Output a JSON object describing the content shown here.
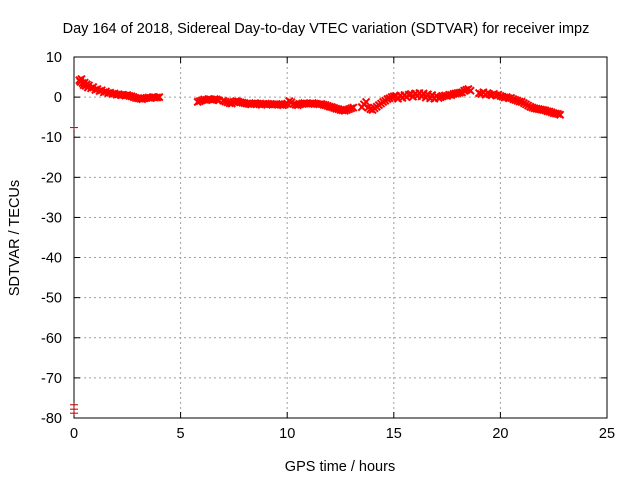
{
  "chart_data": {
    "type": "scatter",
    "title": "Day 164 of 2018, Sidereal Day-to-day VTEC variation (SDTVAR) for receiver impz",
    "xlabel": "GPS time / hours",
    "ylabel": "SDTVAR / TECUs",
    "xlim": [
      0,
      25
    ],
    "ylim": [
      -80,
      10
    ],
    "xticks": [
      0,
      5,
      10,
      15,
      20,
      25
    ],
    "yticks": [
      10,
      0,
      -10,
      -20,
      -30,
      -40,
      -50,
      -60,
      -70,
      -80
    ],
    "grid": true,
    "series": [
      {
        "name": "SDTVAR",
        "color": "#ff0000",
        "marker": "x",
        "points": [
          [
            0.25,
            4.2
          ],
          [
            0.3,
            3.8
          ],
          [
            0.35,
            4.5
          ],
          [
            0.4,
            3.5
          ],
          [
            0.45,
            3.0
          ],
          [
            0.5,
            3.6
          ],
          [
            0.55,
            2.8
          ],
          [
            0.6,
            3.2
          ],
          [
            0.65,
            2.4
          ],
          [
            0.7,
            2.9
          ],
          [
            0.8,
            2.2
          ],
          [
            0.9,
            2.5
          ],
          [
            1.0,
            1.8
          ],
          [
            1.1,
            2.0
          ],
          [
            1.2,
            1.5
          ],
          [
            1.3,
            1.7
          ],
          [
            1.4,
            1.2
          ],
          [
            1.5,
            1.4
          ],
          [
            1.6,
            1.0
          ],
          [
            1.7,
            1.1
          ],
          [
            1.8,
            0.8
          ],
          [
            1.9,
            0.9
          ],
          [
            2.0,
            0.6
          ],
          [
            2.1,
            0.7
          ],
          [
            2.2,
            0.5
          ],
          [
            2.3,
            0.6
          ],
          [
            2.4,
            0.4
          ],
          [
            2.5,
            0.5
          ],
          [
            2.6,
            0.3
          ],
          [
            2.7,
            0.2
          ],
          [
            2.8,
            0.0
          ],
          [
            2.9,
            -0.2
          ],
          [
            3.0,
            -0.3
          ],
          [
            3.1,
            -0.4
          ],
          [
            3.2,
            -0.5
          ],
          [
            3.3,
            -0.3
          ],
          [
            3.4,
            -0.2
          ],
          [
            3.5,
            -0.1
          ],
          [
            3.6,
            -0.2
          ],
          [
            3.7,
            0.0
          ],
          [
            3.8,
            -0.1
          ],
          [
            3.9,
            -0.1
          ],
          [
            4.0,
            0.0
          ],
          [
            5.8,
            -1.2
          ],
          [
            5.9,
            -1.0
          ],
          [
            6.0,
            -0.8
          ],
          [
            6.1,
            -0.6
          ],
          [
            6.2,
            -0.7
          ],
          [
            6.3,
            -0.5
          ],
          [
            6.4,
            -0.6
          ],
          [
            6.5,
            -0.7
          ],
          [
            6.6,
            -0.5
          ],
          [
            6.7,
            -0.6
          ],
          [
            6.8,
            -0.8
          ],
          [
            7.0,
            -0.9
          ],
          [
            7.1,
            -1.1
          ],
          [
            7.2,
            -1.3
          ],
          [
            7.3,
            -1.5
          ],
          [
            7.4,
            -1.6
          ],
          [
            7.5,
            -1.2
          ],
          [
            7.6,
            -1.0
          ],
          [
            7.7,
            -1.1
          ],
          [
            7.8,
            -1.3
          ],
          [
            7.9,
            -1.4
          ],
          [
            8.0,
            -1.5
          ],
          [
            8.1,
            -1.6
          ],
          [
            8.2,
            -1.7
          ],
          [
            8.3,
            -1.8
          ],
          [
            8.4,
            -1.6
          ],
          [
            8.5,
            -1.5
          ],
          [
            8.6,
            -1.6
          ],
          [
            8.7,
            -1.8
          ],
          [
            8.8,
            -1.9
          ],
          [
            8.9,
            -1.7
          ],
          [
            9.0,
            -1.6
          ],
          [
            9.1,
            -1.7
          ],
          [
            9.2,
            -1.8
          ],
          [
            9.3,
            -1.9
          ],
          [
            9.4,
            -1.8
          ],
          [
            9.5,
            -1.7
          ],
          [
            9.6,
            -1.8
          ],
          [
            9.7,
            -1.9
          ],
          [
            9.8,
            -2.0
          ],
          [
            9.9,
            -1.8
          ],
          [
            10.0,
            -1.6
          ],
          [
            10.1,
            -1.0
          ],
          [
            10.2,
            -1.3
          ],
          [
            10.3,
            -1.7
          ],
          [
            10.4,
            -1.9
          ],
          [
            10.5,
            -2.0
          ],
          [
            10.6,
            -1.8
          ],
          [
            10.7,
            -1.6
          ],
          [
            10.8,
            -1.5
          ],
          [
            10.9,
            -1.6
          ],
          [
            11.0,
            -1.7
          ],
          [
            11.1,
            -1.6
          ],
          [
            11.2,
            -1.5
          ],
          [
            11.3,
            -1.6
          ],
          [
            11.4,
            -1.7
          ],
          [
            11.5,
            -1.8
          ],
          [
            11.6,
            -1.7
          ],
          [
            11.7,
            -1.9
          ],
          [
            11.8,
            -2.0
          ],
          [
            11.9,
            -2.2
          ],
          [
            12.0,
            -2.4
          ],
          [
            12.1,
            -2.5
          ],
          [
            12.2,
            -2.7
          ],
          [
            12.3,
            -2.9
          ],
          [
            12.4,
            -3.0
          ],
          [
            12.5,
            -3.2
          ],
          [
            12.6,
            -3.3
          ],
          [
            12.7,
            -3.4
          ],
          [
            12.8,
            -3.2
          ],
          [
            12.9,
            -3.0
          ],
          [
            13.0,
            -2.8
          ],
          [
            13.1,
            -2.6
          ],
          [
            13.5,
            -2.5
          ],
          [
            13.6,
            -1.8
          ],
          [
            13.7,
            -1.2
          ],
          [
            13.8,
            -2.6
          ],
          [
            13.9,
            -3.0
          ],
          [
            14.0,
            -3.2
          ],
          [
            14.1,
            -2.8
          ],
          [
            14.2,
            -2.4
          ],
          [
            14.3,
            -2.0
          ],
          [
            14.4,
            -1.6
          ],
          [
            14.5,
            -1.2
          ],
          [
            14.6,
            -0.9
          ],
          [
            14.7,
            -0.5
          ],
          [
            14.8,
            -0.3
          ],
          [
            14.9,
            0.0
          ],
          [
            15.0,
            0.2
          ],
          [
            15.1,
            0.3
          ],
          [
            15.2,
            -0.4
          ],
          [
            15.3,
            0.4
          ],
          [
            15.4,
            -0.2
          ],
          [
            15.5,
            0.5
          ],
          [
            15.6,
            0.0
          ],
          [
            15.7,
            0.6
          ],
          [
            15.8,
            0.8
          ],
          [
            15.9,
            0.1
          ],
          [
            16.0,
            0.9
          ],
          [
            16.1,
            0.3
          ],
          [
            16.2,
            1.0
          ],
          [
            16.3,
            0.2
          ],
          [
            16.4,
            0.9
          ],
          [
            16.5,
            -0.1
          ],
          [
            16.6,
            0.7
          ],
          [
            16.7,
            -0.3
          ],
          [
            16.8,
            0.5
          ],
          [
            16.9,
            -0.4
          ],
          [
            17.0,
            0.3
          ],
          [
            17.1,
            -0.2
          ],
          [
            17.2,
            0.0
          ],
          [
            17.3,
            0.2
          ],
          [
            17.4,
            0.4
          ],
          [
            17.5,
            0.3
          ],
          [
            17.6,
            0.6
          ],
          [
            17.7,
            0.5
          ],
          [
            17.8,
            0.8
          ],
          [
            17.9,
            0.9
          ],
          [
            18.0,
            1.0
          ],
          [
            18.1,
            1.1
          ],
          [
            18.2,
            1.2
          ],
          [
            18.3,
            1.6
          ],
          [
            18.4,
            1.8
          ],
          [
            18.5,
            2.0
          ],
          [
            18.6,
            1.6
          ],
          [
            19.0,
            1.0
          ],
          [
            19.1,
            0.8
          ],
          [
            19.2,
            1.2
          ],
          [
            19.3,
            0.6
          ],
          [
            19.4,
            1.0
          ],
          [
            19.5,
            0.7
          ],
          [
            19.6,
            0.5
          ],
          [
            19.7,
            0.8
          ],
          [
            19.8,
            0.4
          ],
          [
            19.9,
            0.6
          ],
          [
            20.0,
            0.3
          ],
          [
            20.1,
            0.1
          ],
          [
            20.2,
            -0.1
          ],
          [
            20.3,
            0.0
          ],
          [
            20.4,
            -0.3
          ],
          [
            20.5,
            -0.2
          ],
          [
            20.6,
            -0.5
          ],
          [
            20.7,
            -0.7
          ],
          [
            20.8,
            -0.9
          ],
          [
            20.9,
            -1.1
          ],
          [
            21.0,
            -1.2
          ],
          [
            21.1,
            -1.5
          ],
          [
            21.2,
            -1.8
          ],
          [
            21.3,
            -2.1
          ],
          [
            21.4,
            -2.4
          ],
          [
            21.5,
            -2.6
          ],
          [
            21.6,
            -2.8
          ],
          [
            21.7,
            -2.9
          ],
          [
            21.8,
            -3.0
          ],
          [
            21.9,
            -3.1
          ],
          [
            22.0,
            -3.2
          ],
          [
            22.1,
            -3.3
          ],
          [
            22.2,
            -3.5
          ],
          [
            22.3,
            -3.6
          ],
          [
            22.4,
            -3.8
          ],
          [
            22.5,
            -4.0
          ],
          [
            22.6,
            -4.1
          ],
          [
            22.7,
            -4.2
          ],
          [
            22.8,
            -4.4
          ]
        ]
      },
      {
        "name": "SDTVAR-outliers",
        "color": "#b00000",
        "marker": "plus",
        "points": [
          [
            0.0,
            -7.6
          ],
          [
            0.0,
            -76.7
          ],
          [
            0.0,
            -77.8
          ],
          [
            0.0,
            -78.8
          ]
        ]
      }
    ]
  }
}
